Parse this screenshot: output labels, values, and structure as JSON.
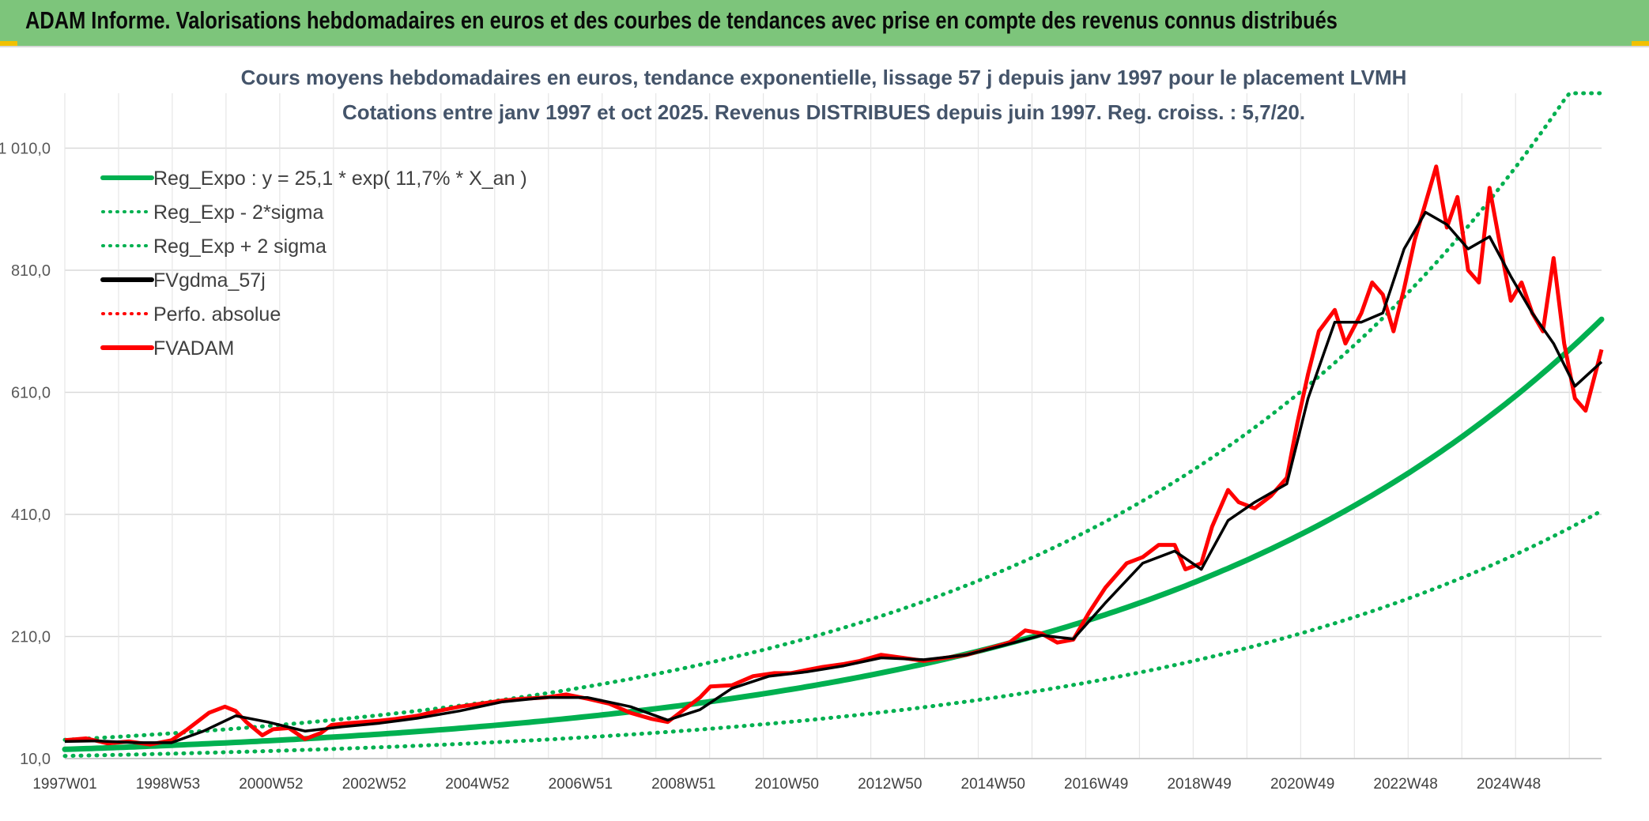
{
  "header": {
    "title": "ADAM Informe. Valorisations hebdomadaires en euros et des courbes de tendances avec prise en compte des revenus connus distribués"
  },
  "colors": {
    "banner": "#7dc57b",
    "trend": "#00b050",
    "smoothed": "#000000",
    "price": "#ff0000",
    "corner": "#f2c100"
  },
  "chart_data": {
    "type": "line",
    "title": "Cours moyens hebdomadaires en euros, tendance exponentielle, lissage 57 j depuis janv 1997 pour le placement LVMH",
    "subtitle": "Cotations entre janv 1997 et oct 2025. Revenus DISTRIBUES depuis juin 1997. Reg. croiss. : 5,7/20.",
    "ylim": [
      10,
      1100
    ],
    "yticks": [
      "1 010,0",
      "810,0",
      "610,0",
      "410,0",
      "210,0",
      "10,0"
    ],
    "xticks": [
      "1997W01",
      "1998W53",
      "2000W52",
      "2002W52",
      "2004W52",
      "2006W51",
      "2008W51",
      "2010W50",
      "2012W50",
      "2014W50",
      "2016W49",
      "2018W49",
      "2020W49",
      "2022W48",
      "2024W48"
    ],
    "xlim": [
      1997.0,
      2025.8
    ],
    "grid": true,
    "legend_position": "top-left",
    "legend": [
      {
        "label": "Reg_Expo : y = 25,1 * exp( 11,7% *  X_an )",
        "style": "solid",
        "color": "#00b050"
      },
      {
        "label": "Reg_Exp - 2*sigma",
        "style": "dotted",
        "color": "#00b050"
      },
      {
        "label": "Reg_Exp + 2 sigma",
        "style": "dotted",
        "color": "#00b050"
      },
      {
        "label": "FVgdma_57j",
        "style": "solid",
        "color": "#000000"
      },
      {
        "label": "Perfo. absolue",
        "style": "dotted",
        "color": "#ff0000"
      },
      {
        "label": "FVADAM",
        "style": "solid",
        "color": "#ff0000"
      }
    ],
    "trend": {
      "a": 25.1,
      "b": 0.117,
      "lower_factor": 0.57,
      "upper_factor": 1.62,
      "cap": 1100
    },
    "series_fvadam": {
      "x": [
        1997.0,
        1997.4,
        1997.8,
        1998.2,
        1998.6,
        1999.0,
        1999.3,
        1999.7,
        2000.0,
        2000.2,
        2000.4,
        2000.7,
        2000.9,
        2001.2,
        2001.5,
        2001.8,
        2002.0,
        2002.3,
        2002.6,
        2002.9,
        2003.2,
        2003.6,
        2004.0,
        2004.4,
        2004.8,
        2005.2,
        2005.6,
        2006.0,
        2006.4,
        2006.8,
        2007.2,
        2007.6,
        2008.0,
        2008.3,
        2008.6,
        2008.9,
        2009.1,
        2009.5,
        2009.9,
        2010.3,
        2010.6,
        2010.9,
        2011.2,
        2011.6,
        2011.9,
        2012.3,
        2012.7,
        2013.1,
        2013.5,
        2013.9,
        2014.3,
        2014.7,
        2015.0,
        2015.3,
        2015.6,
        2015.9,
        2016.2,
        2016.5,
        2016.9,
        2017.2,
        2017.5,
        2017.8,
        2018.0,
        2018.3,
        2018.5,
        2018.8,
        2019.0,
        2019.3,
        2019.6,
        2019.9,
        2020.1,
        2020.3,
        2020.5,
        2020.8,
        2021.0,
        2021.3,
        2021.5,
        2021.7,
        2021.9,
        2022.1,
        2022.3,
        2022.5,
        2022.7,
        2022.9,
        2023.1,
        2023.3,
        2023.5,
        2023.7,
        2023.9,
        2024.1,
        2024.3,
        2024.5,
        2024.7,
        2024.9,
        2025.1,
        2025.3,
        2025.5,
        2025.8
      ],
      "y": [
        40,
        43,
        35,
        38,
        33,
        40,
        58,
        85,
        95,
        88,
        70,
        48,
        58,
        60,
        42,
        52,
        65,
        68,
        70,
        72,
        75,
        80,
        88,
        95,
        100,
        105,
        108,
        110,
        115,
        108,
        100,
        85,
        75,
        70,
        90,
        110,
        128,
        130,
        145,
        150,
        150,
        155,
        160,
        165,
        170,
        180,
        175,
        170,
        175,
        180,
        190,
        200,
        220,
        215,
        200,
        205,
        250,
        290,
        330,
        340,
        360,
        360,
        320,
        330,
        390,
        450,
        430,
        420,
        440,
        470,
        560,
        640,
        710,
        745,
        690,
        740,
        790,
        770,
        710,
        780,
        860,
        920,
        980,
        880,
        930,
        810,
        790,
        945,
        850,
        760,
        790,
        740,
        710,
        830,
        690,
        600,
        580,
        680
      ]
    },
    "series_gdma": {
      "x": [
        1997.0,
        1997.6,
        1998.3,
        1999.0,
        1999.6,
        2000.2,
        2000.8,
        2001.5,
        2002.2,
        2002.9,
        2003.6,
        2004.4,
        2005.2,
        2006.0,
        2006.8,
        2007.6,
        2008.3,
        2008.9,
        2009.5,
        2010.2,
        2010.9,
        2011.6,
        2012.3,
        2013.1,
        2013.9,
        2014.7,
        2015.3,
        2015.9,
        2016.5,
        2017.2,
        2017.8,
        2018.3,
        2018.8,
        2019.3,
        2019.9,
        2020.3,
        2020.8,
        2021.3,
        2021.7,
        2022.1,
        2022.5,
        2022.9,
        2023.3,
        2023.7,
        2024.1,
        2024.5,
        2024.9,
        2025.3,
        2025.8
      ],
      "y": [
        38,
        39,
        36,
        36,
        55,
        80,
        70,
        55,
        62,
        68,
        76,
        88,
        103,
        110,
        110,
        95,
        73,
        90,
        125,
        145,
        152,
        162,
        175,
        172,
        180,
        198,
        212,
        206,
        265,
        330,
        350,
        320,
        400,
        430,
        460,
        600,
        725,
        725,
        740,
        845,
        905,
        885,
        845,
        865,
        800,
        740,
        690,
        620,
        660
      ]
    }
  }
}
